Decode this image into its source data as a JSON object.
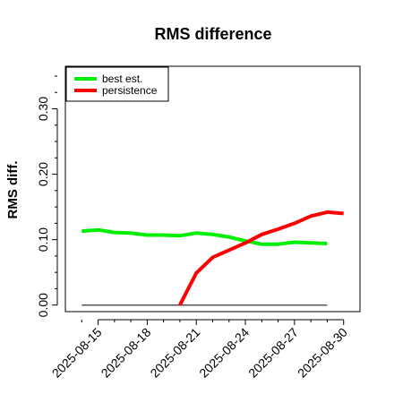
{
  "chart_data": {
    "type": "line",
    "title": "RMS difference",
    "xlabel": "",
    "ylabel": "RMS diff.",
    "x_tick_labels": [
      "2025-08-15",
      "2025-08-18",
      "2025-08-21",
      "2025-08-24",
      "2025-08-27",
      "2025-08-30"
    ],
    "y_tick_labels": [
      "0.00",
      "0.10",
      "0.20",
      "0.30"
    ],
    "y_ticks": [
      0.0,
      0.1,
      0.2,
      0.3
    ],
    "ylim": [
      -0.01,
      0.365
    ],
    "xlim": [
      "2025-08-13",
      "2025-08-31"
    ],
    "legend_position": "top-left",
    "baseline": {
      "value": 0.0,
      "x_range": [
        "2025-08-14",
        "2025-08-29"
      ],
      "color": "#555555"
    },
    "series": [
      {
        "name": "best est.",
        "color": "#00ee00",
        "x": [
          "2025-08-14",
          "2025-08-15",
          "2025-08-16",
          "2025-08-17",
          "2025-08-18",
          "2025-08-19",
          "2025-08-20",
          "2025-08-21",
          "2025-08-22",
          "2025-08-23",
          "2025-08-24",
          "2025-08-25",
          "2025-08-26",
          "2025-08-27",
          "2025-08-28",
          "2025-08-29"
        ],
        "y": [
          0.113,
          0.115,
          0.111,
          0.11,
          0.107,
          0.107,
          0.106,
          0.11,
          0.108,
          0.104,
          0.098,
          0.093,
          0.093,
          0.096,
          0.095,
          0.094
        ]
      },
      {
        "name": "persistence",
        "color": "#ff0000",
        "x": [
          "2025-08-20",
          "2025-08-21",
          "2025-08-22",
          "2025-08-23",
          "2025-08-24",
          "2025-08-25",
          "2025-08-26",
          "2025-08-27",
          "2025-08-28",
          "2025-08-29",
          "2025-08-30"
        ],
        "y": [
          0.0,
          0.049,
          0.073,
          0.084,
          0.095,
          0.108,
          0.116,
          0.125,
          0.136,
          0.142,
          0.14
        ]
      }
    ]
  }
}
